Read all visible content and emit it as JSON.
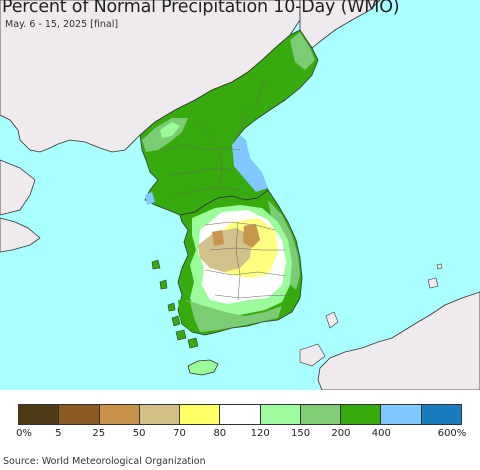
{
  "header": {
    "title": "Percent of Normal Precipitation 10-Day (WMO)",
    "subtitle": "May. 6 - 15, 2025 [final]"
  },
  "map": {
    "colors": {
      "ocean": "#aaffff",
      "outside_land": "#efeaee",
      "deep_green": "#37ab0d",
      "medium_green": "#7bcc74",
      "light_green": "#9cfc9c",
      "white_normal": "#ffffff",
      "light_blue": "#80c8ff",
      "yellow": "#ffff80",
      "tan": "#d0c28a",
      "light_brown": "#c8964c",
      "boundary": "#555555"
    }
  },
  "legend": {
    "colors": [
      "#4d3b16",
      "#8b5a22",
      "#c8914a",
      "#d3bf85",
      "#ffff66",
      "#ffffff",
      "#a0fca0",
      "#80cd75",
      "#37ab0d",
      "#80c8ff",
      "#1a7bbf"
    ],
    "labels": [
      "0%",
      "5",
      "25",
      "50",
      "70",
      "80",
      "120",
      "150",
      "200",
      "400",
      "600%"
    ]
  },
  "footer": {
    "source": "Source: World Meteorological Organization"
  }
}
